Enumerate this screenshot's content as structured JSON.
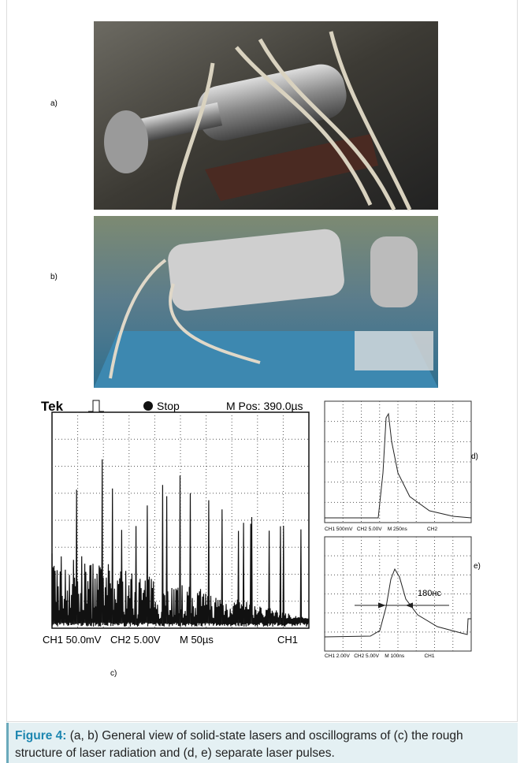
{
  "figure": {
    "panels": [
      "a)",
      "b)",
      "c)",
      "d)",
      "e)"
    ],
    "scope_c": {
      "brand": "Tek",
      "state": "Stop",
      "position": "M Pos: 390.0µs",
      "ch1": "CH1 50.0mV",
      "ch2": "CH2 5.00V",
      "time": "M 50µs",
      "trigger": "CH1"
    },
    "scope_d": {
      "footer": "CH1 500mV   CH2 5.00V    M 250ns              CH2"
    },
    "scope_e": {
      "footer": "CH1 2.00V   CH2 5.00V    M 100ns              CH1",
      "width_label": "180нс"
    }
  },
  "caption": {
    "label": "Figure 4:",
    "text": " (a, b) General view of solid-state lasers and oscillograms of (c) the rough structure of laser radiation and (d, e) separate laser pulses."
  }
}
